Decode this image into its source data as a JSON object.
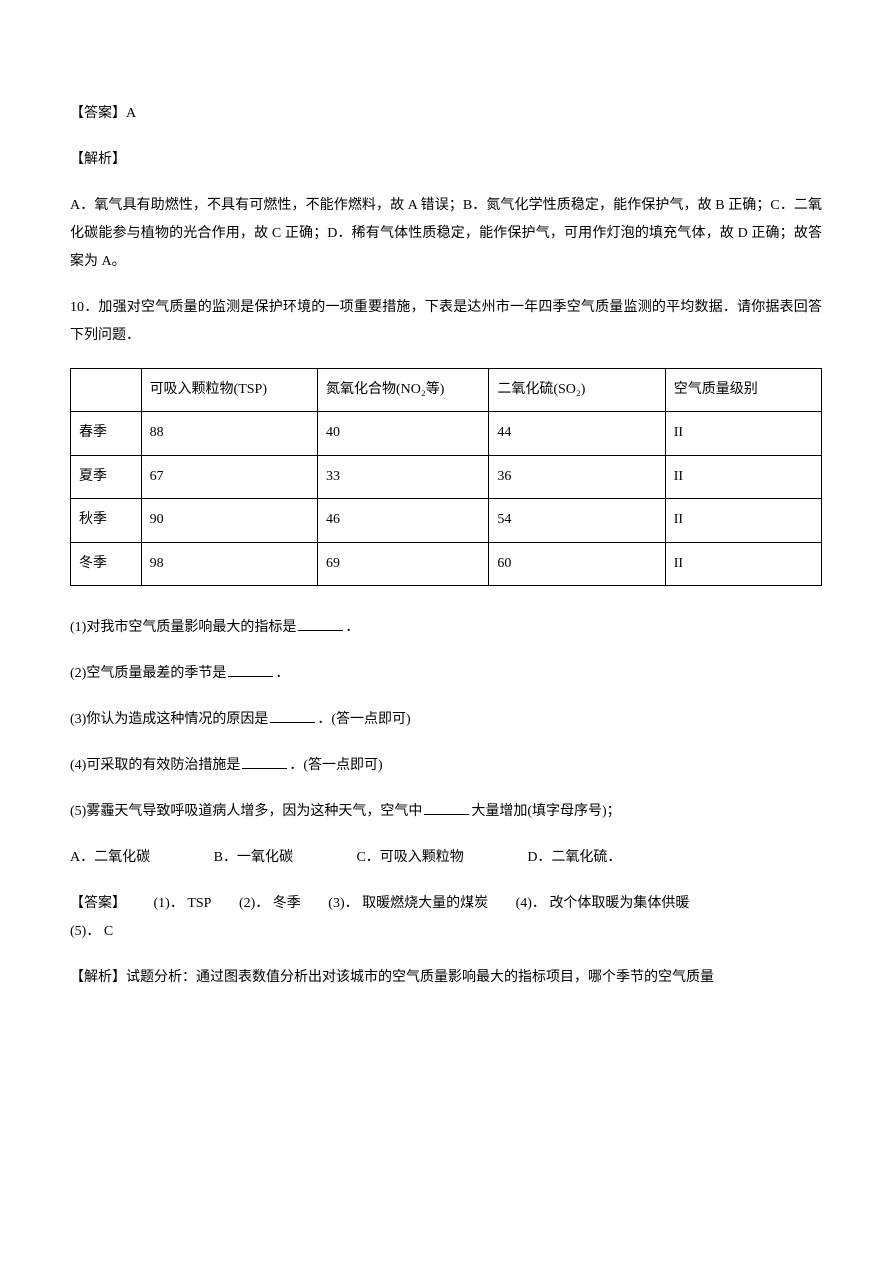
{
  "answer_header": "【答案】A",
  "analysis_header": "【解析】",
  "analysis_body": "A．氧气具有助燃性，不具有可燃性，不能作燃料，故 A 错误；B．氮气化学性质稳定，能作保护气，故 B 正确；C．二氧化碳能参与植物的光合作用，故 C 正确；D．稀有气体性质稳定，能作保护气，可用作灯泡的填充气体，故 D 正确；故答案为 A。",
  "q10_intro": "10．加强对空气质量的监测是保护环境的一项重要措施，下表是达州市一年四季空气质量监测的平均数据．请你据表回答下列问题．",
  "table": {
    "headers": {
      "blank": "",
      "tsp": "可吸入颗粒物(TSP)",
      "no2": "氮氧化合物(NO₂等)",
      "so2": "二氧化硫(SO₂)",
      "level": "空气质量级别"
    },
    "rows": [
      {
        "season": "春季",
        "tsp": "88",
        "no2": "40",
        "so2": "44",
        "level": "II"
      },
      {
        "season": "夏季",
        "tsp": "67",
        "no2": "33",
        "so2": "36",
        "level": "II"
      },
      {
        "season": "秋季",
        "tsp": "90",
        "no2": "46",
        "so2": "54",
        "level": "II"
      },
      {
        "season": "冬季",
        "tsp": "98",
        "no2": "69",
        "so2": "60",
        "level": "II"
      }
    ]
  },
  "questions": {
    "q1_pre": "(1)对我市空气质量影响最大的指标是",
    "q1_post": "．",
    "q2_pre": "(2)空气质量最差的季节是",
    "q2_post": "．",
    "q3_pre": "(3)你认为造成这种情况的原因是",
    "q3_post": "．(答一点即可)",
    "q4_pre": "(4)可采取的有效防治措施是",
    "q4_post": "．(答一点即可)",
    "q5_pre": "(5)雾霾天气导致呼吸道病人增多，因为这种天气，空气中",
    "q5_post": "大量增加(填字母序号)；"
  },
  "options": {
    "a": "A．二氧化碳",
    "b": "B．一氧化碳",
    "c": "C．可吸入颗粒物",
    "d": "D．二氧化硫．"
  },
  "answers": {
    "label": "【答案】",
    "a1_label": "(1)．",
    "a1_val": "TSP",
    "a2_label": "(2)．",
    "a2_val": "冬季",
    "a3_label": "(3)．",
    "a3_val": "取暖燃烧大量的煤炭",
    "a4_label": "(4)．",
    "a4_val": "改个体取暖为集体供暖",
    "a5_label": "(5)．",
    "a5_val": "C"
  },
  "analysis2": "【解析】试题分析：通过图表数值分析出对该城市的空气质量影响最大的指标项目，哪个季节的空气质量"
}
